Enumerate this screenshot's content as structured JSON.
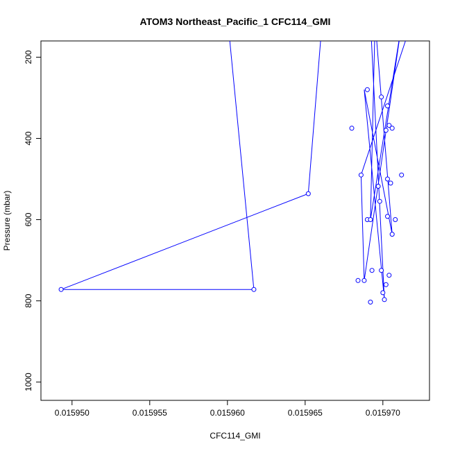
{
  "chart_data": {
    "type": "line",
    "title": "ATOM3 Northeast_Pacific_1 CFC114_GMI",
    "xlabel": "CFC114_GMI",
    "ylabel": "Pressure (mbar)",
    "xlim": [
      0.015948,
      0.015973
    ],
    "ylim": [
      1045,
      160
    ],
    "y_reversed": true,
    "xticks": [
      0.01595,
      0.015955,
      0.01596,
      0.015965,
      0.01597
    ],
    "xtick_labels": [
      "0.015950",
      "0.015955",
      "0.015960",
      "0.015965",
      "0.015970"
    ],
    "yticks": [
      200,
      400,
      600,
      800,
      1000
    ],
    "ytick_labels": [
      "200",
      "400",
      "600",
      "800",
      "1000"
    ],
    "grid": false,
    "series": [
      {
        "color": "#0000ff",
        "marker": "open-circle",
        "line_points": [
          [
            0.01596,
            100
          ],
          [
            0.0159617,
            772
          ],
          [
            0.0159493,
            772
          ],
          [
            0.0159652,
            536
          ],
          [
            0.0159661,
            110
          ],
          [
            0.0159718,
            120
          ],
          [
            0.0159686,
            490
          ],
          [
            0.0159688,
            750
          ],
          [
            0.0159712,
            120
          ],
          [
            0.0159692,
            600
          ],
          [
            0.0159695,
            110
          ],
          [
            0.0159706,
            636
          ],
          [
            0.0159688,
            280
          ],
          [
            0.0159701,
            797
          ],
          [
            0.0159692,
            110
          ]
        ],
        "points": [
          [
            0.0159617,
            772
          ],
          [
            0.0159493,
            772
          ],
          [
            0.0159652,
            536
          ],
          [
            0.015968,
            375
          ],
          [
            0.0159686,
            490
          ],
          [
            0.0159688,
            750
          ],
          [
            0.0159684,
            750
          ],
          [
            0.015969,
            280
          ],
          [
            0.015969,
            600
          ],
          [
            0.0159692,
            600
          ],
          [
            0.0159692,
            803
          ],
          [
            0.0159693,
            725
          ],
          [
            0.0159697,
            518
          ],
          [
            0.0159698,
            555
          ],
          [
            0.0159699,
            298
          ],
          [
            0.0159699,
            725
          ],
          [
            0.01597,
            780
          ],
          [
            0.0159701,
            797
          ],
          [
            0.0159702,
            760
          ],
          [
            0.0159702,
            380
          ],
          [
            0.0159703,
            320
          ],
          [
            0.0159703,
            500
          ],
          [
            0.0159703,
            592
          ],
          [
            0.0159704,
            368
          ],
          [
            0.0159704,
            737
          ],
          [
            0.0159705,
            510
          ],
          [
            0.0159706,
            375
          ],
          [
            0.0159706,
            636
          ],
          [
            0.0159708,
            600
          ],
          [
            0.0159712,
            490
          ]
        ]
      }
    ]
  }
}
